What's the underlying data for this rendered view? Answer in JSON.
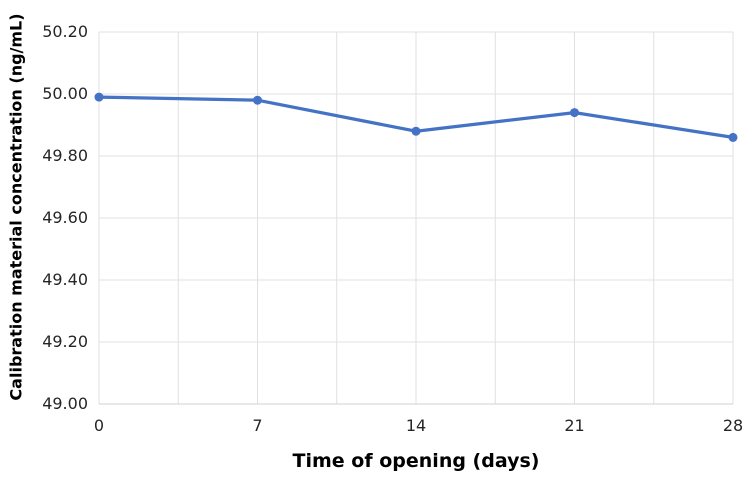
{
  "chart_data": {
    "type": "line",
    "title": "",
    "xlabel": "Time of opening (days)",
    "ylabel": "Calibration material concentration (ng/mL)",
    "x": [
      0,
      7,
      14,
      21,
      28
    ],
    "series": [
      {
        "name": "Calibration material concentration",
        "values": [
          49.99,
          49.98,
          49.88,
          49.94,
          49.86
        ]
      }
    ],
    "xlim": [
      0,
      28
    ],
    "ylim": [
      49.0,
      50.2
    ],
    "ytick_step": 0.2,
    "ytick_labels": [
      "49.00",
      "49.20",
      "49.40",
      "49.60",
      "49.80",
      "50.00",
      "50.20"
    ],
    "xtick_labels": [
      "0",
      "7",
      "14",
      "21",
      "28"
    ],
    "x_gridline_interval": 3.5,
    "grid": true,
    "legend": "none",
    "marker": "circle",
    "colors": {
      "line": "#4472C4",
      "marker": "#4472C4",
      "gridline": "#E0E0E0",
      "axis_line": "#D0D0D0",
      "tick_text": "#262626",
      "title_text": "#000000"
    }
  }
}
